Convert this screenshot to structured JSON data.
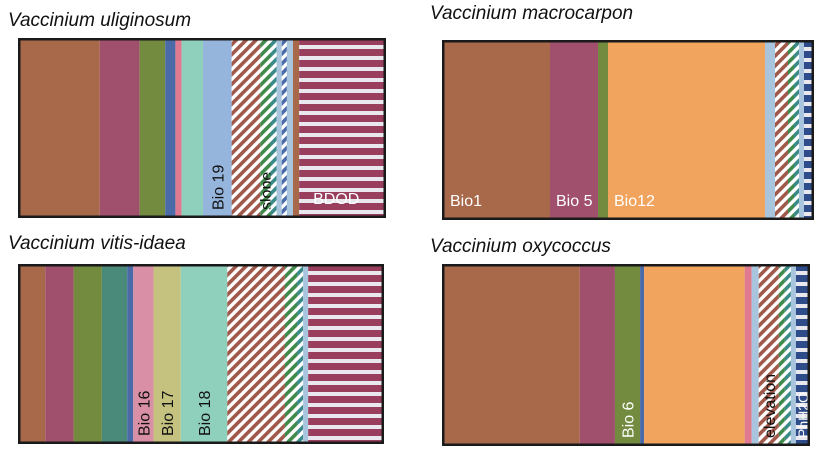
{
  "colors": {
    "bio1": "#a8684a",
    "bio5": "#a0506d",
    "bio6": "#728b3f",
    "bio12": "#f0a45e",
    "bio16": "#d98fa5",
    "bio17": "#c5c27f",
    "bio18": "#8fd0bd",
    "bio19": "#96b5dd",
    "teal": "#4a8a7a",
    "blue": "#4a6aa8",
    "pink": "#e07a90",
    "lightblue": "#a9c4dd",
    "hatch_brown": "#a0584a",
    "hatch_green": "#3f8a4a",
    "hatch_teal": "#3a8a8a",
    "hatch_blue": "#4a6aa8",
    "stripe_red": "#9a3e5e",
    "navy": "#2f4c8a"
  },
  "chart_data": [
    {
      "type": "stacked-bar",
      "title": "Vaccinium uliginosum",
      "segments": [
        {
          "color": "bio1",
          "value": 78
        },
        {
          "color": "bio5",
          "value": 39
        },
        {
          "color": "bio6",
          "value": 25
        },
        {
          "color": "blue",
          "value": 10
        },
        {
          "color": "pink",
          "value": 6
        },
        {
          "color": "bio18",
          "value": 21
        },
        {
          "color": "bio19",
          "value": 28,
          "label": "Bio 19"
        },
        {
          "color": "hatch_brown",
          "hatch": true,
          "value": 28
        },
        {
          "color": "hatch_green",
          "hatch": true,
          "value": 10,
          "label": "slope"
        },
        {
          "color": "hatch_teal",
          "hatch": true,
          "value": 6
        },
        {
          "color": "lightblue",
          "value": 5
        },
        {
          "color": "hatch_blue",
          "hatch": true,
          "value": 5
        },
        {
          "color": "lightblue",
          "value": 6
        },
        {
          "color": "bio1",
          "value": 6
        },
        {
          "color": "stripe_red",
          "stripe": true,
          "value": 83,
          "label": "BDOD",
          "label_horizontal": true
        }
      ]
    },
    {
      "type": "stacked-bar",
      "title": "Vaccinium macrocarpon",
      "segments": [
        {
          "color": "bio1",
          "value": 106,
          "label": "Bio1",
          "label_horizontal": true
        },
        {
          "color": "bio5",
          "value": 48,
          "label": "Bio 5",
          "label_horizontal": true
        },
        {
          "color": "bio6",
          "value": 10
        },
        {
          "color": "bio12",
          "value": 157,
          "label": "Bio12",
          "label_horizontal": true
        },
        {
          "color": "lightblue",
          "value": 10
        },
        {
          "color": "hatch_brown",
          "hatch": true,
          "value": 13
        },
        {
          "color": "hatch_green",
          "hatch": true,
          "value": 6
        },
        {
          "color": "hatch_teal",
          "hatch": true,
          "value": 5
        },
        {
          "color": "lightblue",
          "value": 5
        },
        {
          "color": "navy",
          "stripe": true,
          "value": 8
        }
      ]
    },
    {
      "type": "stacked-bar",
      "title": "Vaccinium vitis-idaea",
      "segments": [
        {
          "color": "bio1",
          "value": 25
        },
        {
          "color": "bio5",
          "value": 28
        },
        {
          "color": "bio6",
          "value": 28
        },
        {
          "color": "teal",
          "value": 25
        },
        {
          "color": "blue",
          "value": 6
        },
        {
          "color": "bio16",
          "value": 20,
          "label": "Bio 16"
        },
        {
          "color": "bio17",
          "value": 27,
          "label": "Bio 17"
        },
        {
          "color": "bio18",
          "value": 46,
          "label": "Bio 18"
        },
        {
          "color": "hatch_brown",
          "hatch": true,
          "value": 57
        },
        {
          "color": "hatch_green",
          "hatch": true,
          "value": 12
        },
        {
          "color": "hatch_teal",
          "hatch": true,
          "value": 6
        },
        {
          "color": "lightblue",
          "value": 5
        },
        {
          "color": "stripe_red",
          "stripe": true,
          "value": 73
        }
      ]
    },
    {
      "type": "stacked-bar",
      "title": "Vaccinium oxycoccus",
      "segments": [
        {
          "color": "bio1",
          "value": 135
        },
        {
          "color": "bio5",
          "value": 35
        },
        {
          "color": "bio6",
          "value": 25,
          "label": "Bio 6"
        },
        {
          "color": "blue",
          "value": 4
        },
        {
          "color": "bio12",
          "value": 100
        },
        {
          "color": "pink",
          "value": 7
        },
        {
          "color": "lightblue",
          "value": 7
        },
        {
          "color": "hatch_brown",
          "hatch": true,
          "value": 20,
          "label": "elevation"
        },
        {
          "color": "hatch_green",
          "hatch": true,
          "value": 6
        },
        {
          "color": "hatch_teal",
          "hatch": true,
          "value": 6
        },
        {
          "color": "lightblue",
          "value": 5
        },
        {
          "color": "navy",
          "stripe": true,
          "value": 12,
          "label": "PhH2O"
        }
      ]
    }
  ]
}
